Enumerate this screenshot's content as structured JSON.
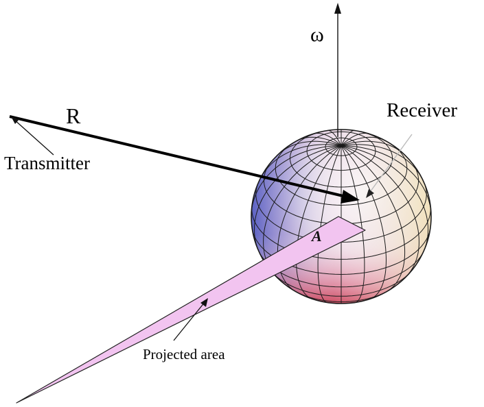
{
  "labels": {
    "omega": "ω",
    "range": "R",
    "receiver": "Receiver",
    "transmitter": "Transmitter",
    "projected_area": "Projected area",
    "area_symbol": "A"
  },
  "colors": {
    "projection_fill": "#f2c4f0",
    "sphere_highlight": "#f6f1f4",
    "sphere_blue": "#5d6ec8",
    "sphere_red": "#d33a4a",
    "sphere_yellow": "#f4e8b8",
    "grid_line": "#1a1a1a"
  }
}
